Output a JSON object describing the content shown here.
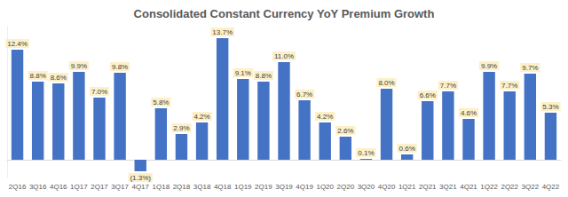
{
  "chart_data": {
    "type": "bar",
    "title": "Consolidated Constant Currency YoY Premium Growth",
    "categories": [
      "2Q16",
      "3Q16",
      "4Q16",
      "1Q17",
      "2Q17",
      "3Q17",
      "4Q17",
      "1Q18",
      "2Q18",
      "3Q18",
      "4Q18",
      "1Q19",
      "2Q19",
      "3Q19",
      "4Q19",
      "1Q20",
      "2Q20",
      "3Q20",
      "4Q20",
      "1Q21",
      "2Q21",
      "3Q21",
      "4Q21",
      "1Q22",
      "2Q22",
      "3Q22",
      "4Q22"
    ],
    "values": [
      12.4,
      8.8,
      8.6,
      9.9,
      7.0,
      9.8,
      -1.3,
      5.8,
      2.9,
      4.2,
      13.7,
      9.1,
      8.8,
      11.0,
      6.7,
      4.2,
      2.6,
      0.1,
      8.0,
      0.6,
      6.6,
      7.7,
      4.6,
      9.9,
      7.7,
      9.7,
      5.3
    ],
    "value_labels": [
      "12.4%",
      "8.8%",
      "8.6%",
      "9.9%",
      "7.0%",
      "9.8%",
      "(1.3%)",
      "5.8%",
      "2.9%",
      "4.2%",
      "13.7%",
      "9.1%",
      "8.8%",
      "11.0%",
      "6.7%",
      "4.2%",
      "2.6%",
      "0.1%",
      "8.0%",
      "0.6%",
      "6.6%",
      "7.7%",
      "4.6%",
      "9.9%",
      "7.7%",
      "9.7%",
      "5.3%"
    ],
    "color": "#4472c4",
    "ylim": [
      -2,
      15
    ],
    "grid": false,
    "data_labels": true,
    "tick_labels": "x"
  }
}
